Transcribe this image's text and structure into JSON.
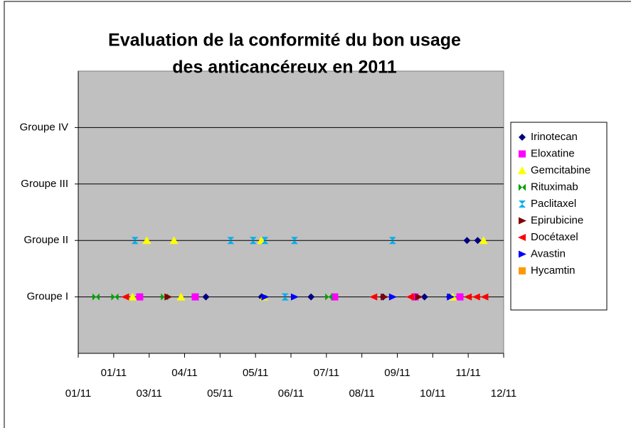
{
  "chart_data": {
    "type": "scatter",
    "title": [
      "Evaluation de la conformité du bon usage",
      "des anticancéreux en 2011"
    ],
    "xlim": [
      40544,
      40904
    ],
    "xticks": [
      {
        "value": 40544,
        "label": "01/11"
      },
      {
        "value": 40574,
        "label": "01/11"
      },
      {
        "value": 40604,
        "label": "03/11"
      },
      {
        "value": 40634,
        "label": "04/11"
      },
      {
        "value": 40664,
        "label": "05/11"
      },
      {
        "value": 40694,
        "label": "05/11"
      },
      {
        "value": 40724,
        "label": "06/11"
      },
      {
        "value": 40754,
        "label": "07/11"
      },
      {
        "value": 40784,
        "label": "08/11"
      },
      {
        "value": 40814,
        "label": "09/11"
      },
      {
        "value": 40844,
        "label": "10/11"
      },
      {
        "value": 40874,
        "label": "11/11"
      },
      {
        "value": 40904,
        "label": "12/11"
      }
    ],
    "ylim": [
      0,
      5
    ],
    "yticks": [
      {
        "value": 1,
        "label": "Groupe I"
      },
      {
        "value": 2,
        "label": "Groupe II"
      },
      {
        "value": 3,
        "label": "Groupe III"
      },
      {
        "value": 4,
        "label": "Groupe IV"
      }
    ],
    "grid": true,
    "legend": "right",
    "series": [
      {
        "name": "Irinotecan",
        "color": "#000080",
        "marker": "diamond",
        "x": [
          40652,
          40699,
          40741,
          40802,
          40837,
          40858,
          40873,
          40882
        ],
        "y": [
          1,
          1,
          1,
          1,
          1,
          1,
          2,
          2
        ]
      },
      {
        "name": "Eloxatine",
        "color": "#ff00ff",
        "marker": "square",
        "x": [
          40596,
          40643,
          40761,
          40829,
          40867
        ],
        "y": [
          1,
          1,
          1,
          1,
          1
        ]
      },
      {
        "name": "Gemcitabine",
        "color": "#ffff00",
        "marker": "triangle-up",
        "x": [
          40590,
          40631,
          40701,
          40861,
          40602,
          40625,
          40699,
          40887
        ],
        "y": [
          1,
          1,
          1,
          1,
          2,
          2,
          2,
          2
        ]
      },
      {
        "name": "Rituximab",
        "color": "#00a000",
        "marker": "bowtie",
        "x": [
          40559,
          40575,
          40617,
          40756
        ],
        "y": [
          1,
          1,
          1,
          1
        ]
      },
      {
        "name": "Paclitaxel",
        "color": "#00b0f0",
        "marker": "hourglass",
        "x": [
          40592,
          40673,
          40692,
          40702,
          40727,
          40810,
          40719
        ],
        "y": [
          2,
          2,
          2,
          2,
          2,
          2,
          1
        ]
      },
      {
        "name": "Epirubicine",
        "color": "#800000",
        "marker": "triangle-right",
        "x": [
          40620,
          40803,
          40832
        ],
        "y": [
          1,
          1,
          1
        ]
      },
      {
        "name": "Docétaxel",
        "color": "#ff0000",
        "marker": "triangle-left",
        "x": [
          40584,
          40794,
          40825,
          40874,
          40881,
          40888
        ],
        "y": [
          1,
          1,
          1,
          1,
          1,
          1
        ]
      },
      {
        "name": "Avastin",
        "color": "#0000ff",
        "marker": "triangle-right",
        "x": [
          40702,
          40727,
          40810,
          40859
        ],
        "y": [
          1,
          1,
          1,
          1
        ]
      },
      {
        "name": "Hycamtin",
        "color": "#ff9900",
        "marker": "square",
        "x": [],
        "y": []
      }
    ]
  }
}
